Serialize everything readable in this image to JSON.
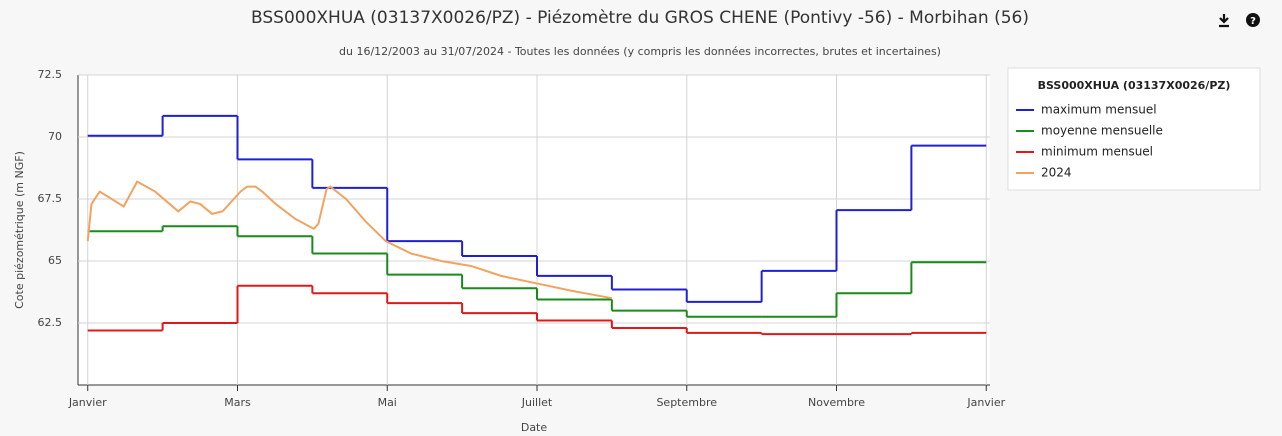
{
  "chart_data": {
    "type": "line",
    "title": "BSS000XHUA (03137X0026/PZ) - Piézomètre du GROS CHENE (Pontivy -56) - Morbihan (56)",
    "subtitle": "du 16/12/2003 au 31/07/2024 - Toutes les données (y compris les données incorrectes, brutes et incertaines)",
    "x_label": "Date",
    "y_label": "Cote piézométrique (m NGF)",
    "legend_title": "BSS000XHUA (03137X0026/PZ)",
    "legend": "right",
    "grid": true,
    "xlim": [
      -0.13,
      12.05
    ],
    "xticks": [
      {
        "value": 0,
        "label": "Janvier"
      },
      {
        "value": 2,
        "label": "Mars"
      },
      {
        "value": 4,
        "label": "Mai"
      },
      {
        "value": 6,
        "label": "Juillet"
      },
      {
        "value": 8,
        "label": "Septembre"
      },
      {
        "value": 10,
        "label": "Novembre"
      },
      {
        "value": 12,
        "label": "Janvier"
      }
    ],
    "ylim": [
      60,
      72.5
    ],
    "yticks": [
      62.5,
      65,
      67.5,
      70,
      72.5
    ],
    "series": [
      {
        "name": "maximum mensuel",
        "color": "#1f1fd6",
        "step": true,
        "values": [
          70.05,
          70.85,
          69.1,
          67.95,
          65.8,
          65.2,
          64.4,
          63.85,
          63.35,
          64.6,
          67.05,
          69.65
        ]
      },
      {
        "name": "moyenne mensuelle",
        "color": "#1a8a1a",
        "step": true,
        "values": [
          66.2,
          66.4,
          66.0,
          65.3,
          64.45,
          63.9,
          63.45,
          63.0,
          62.75,
          62.75,
          63.7,
          64.95
        ]
      },
      {
        "name": "minimum mensuel",
        "color": "#e01818",
        "step": true,
        "values": [
          62.2,
          62.5,
          64.0,
          63.7,
          63.3,
          62.9,
          62.6,
          62.3,
          62.1,
          62.05,
          62.05,
          62.1
        ]
      },
      {
        "name": "2024",
        "color": "#f2a35e",
        "x": [
          0,
          0.05,
          0.16,
          0.48,
          0.66,
          0.9,
          1.21,
          1.37,
          1.5,
          1.66,
          1.8,
          2.04,
          2.13,
          2.24,
          2.33,
          2.51,
          2.77,
          3.02,
          3.08,
          3.19,
          3.24,
          3.45,
          3.71,
          3.98,
          4.32,
          4.72,
          5.12,
          5.52,
          5.99,
          6.46,
          7.0
        ],
        "values": [
          65.8,
          67.3,
          67.8,
          67.2,
          68.2,
          67.8,
          67.0,
          67.4,
          67.3,
          66.9,
          67.0,
          67.8,
          68.0,
          68.0,
          67.8,
          67.3,
          66.7,
          66.3,
          66.5,
          67.9,
          68.0,
          67.5,
          66.6,
          65.8,
          65.3,
          65.0,
          64.8,
          64.4,
          64.1,
          63.8,
          63.5
        ]
      }
    ]
  }
}
